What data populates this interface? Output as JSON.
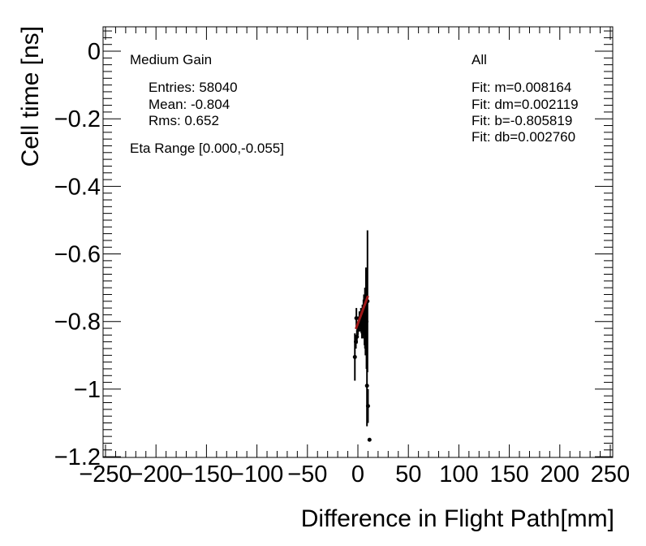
{
  "chart_data": {
    "type": "scatter",
    "xlabel": "Difference in Flight Path[mm]",
    "ylabel": "Cell time [ns]",
    "xlim": [
      -250,
      250
    ],
    "ylim": [
      -1.2,
      0.05
    ],
    "x_ticks": [
      -250,
      -200,
      -150,
      -100,
      -50,
      0,
      50,
      100,
      150,
      200,
      250
    ],
    "x_tick_labels": [
      "−250",
      "−200",
      "−150",
      "−100",
      "−50",
      "0",
      "50",
      "100",
      "150",
      "200",
      "250"
    ],
    "y_ticks": [
      0,
      -0.2,
      -0.4,
      -0.6,
      -0.8,
      -1,
      -1.2
    ],
    "y_tick_labels": [
      "0",
      "−0.2",
      "−0.4",
      "−0.6",
      "−0.8",
      "−1",
      "−1.2"
    ],
    "grid": false,
    "marker_color": "#000000",
    "fit_color": "#a01818",
    "points": [
      {
        "x": -3,
        "y": -0.905,
        "err": 0.07
      },
      {
        "x": -2,
        "y": -0.86,
        "err": 0.02
      },
      {
        "x": -1,
        "y": -0.845,
        "err": 0.02
      },
      {
        "x": -1.5,
        "y": -0.79,
        "err": 0.03
      },
      {
        "x": 0,
        "y": -0.82,
        "err": 0.02
      },
      {
        "x": 1,
        "y": -0.81,
        "err": 0.02
      },
      {
        "x": 1.5,
        "y": -0.79,
        "err": 0.02
      },
      {
        "x": 2,
        "y": -0.795,
        "err": 0.02
      },
      {
        "x": 2.5,
        "y": -0.8,
        "err": 0.03
      },
      {
        "x": 3,
        "y": -0.79,
        "err": 0.03
      },
      {
        "x": 3.5,
        "y": -0.805,
        "err": 0.03
      },
      {
        "x": 4,
        "y": -0.81,
        "err": 0.04
      },
      {
        "x": 4.5,
        "y": -0.79,
        "err": 0.04
      },
      {
        "x": 5,
        "y": -0.8,
        "err": 0.05
      },
      {
        "x": 5.5,
        "y": -0.785,
        "err": 0.05
      },
      {
        "x": 6,
        "y": -0.78,
        "err": 0.06
      },
      {
        "x": 6.5,
        "y": -0.8,
        "err": 0.07
      },
      {
        "x": 7,
        "y": -0.79,
        "err": 0.09
      },
      {
        "x": 7.5,
        "y": -0.8,
        "err": 0.1
      },
      {
        "x": 8,
        "y": -0.76,
        "err": 0.12
      },
      {
        "x": 8.5,
        "y": -0.8,
        "err": 0.14
      },
      {
        "x": 9,
        "y": -0.99,
        "err": 0.12
      },
      {
        "x": 9.5,
        "y": -0.74,
        "err": 0.21
      },
      {
        "x": 10,
        "y": -1.05,
        "err": 0.05
      },
      {
        "x": 11.5,
        "y": -1.15,
        "err": 0.0
      }
    ],
    "fit": {
      "x": [
        -2,
        10
      ],
      "y": [
        -0.822,
        -0.724
      ]
    }
  },
  "annotations": {
    "gain": "Medium Gain",
    "entries": "Entries: 58040",
    "mean": "Mean: -0.804",
    "rms": "Rms: 0.652",
    "eta": "Eta Range [0.000,-0.055]",
    "category": "All",
    "fit_m": "Fit: m=0.008164",
    "fit_dm": "Fit: dm=0.002119",
    "fit_b": "Fit: b=-0.805819",
    "fit_db": "Fit: db=0.002760"
  }
}
